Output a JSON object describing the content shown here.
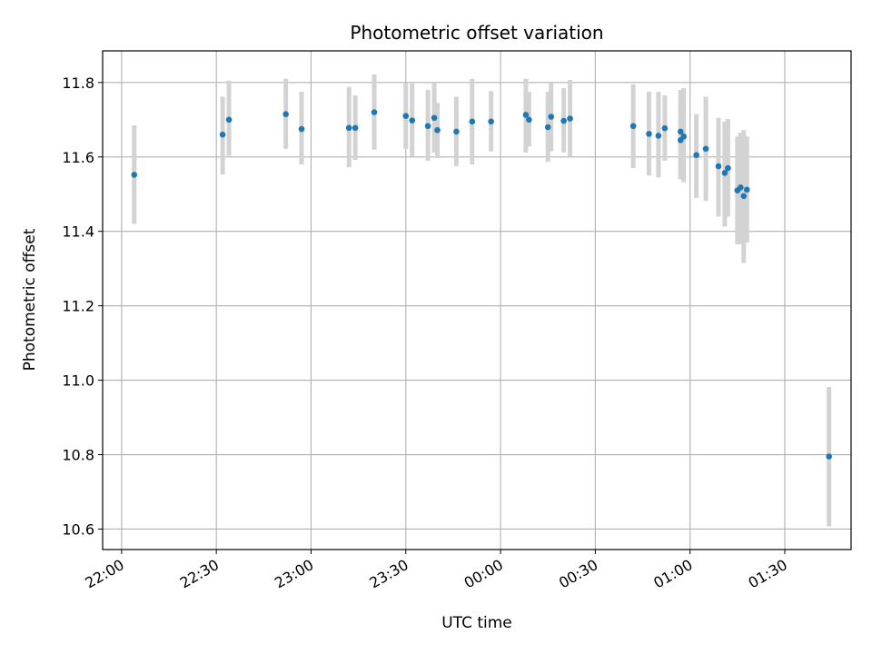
{
  "chart_data": {
    "type": "scatter",
    "title": "Photometric offset variation",
    "xlabel": "UTC time",
    "ylabel": "Photometric offset",
    "x_axis_kind": "time",
    "xlim": [
      "21:54",
      "01:51"
    ],
    "ylim": [
      10.545,
      11.885
    ],
    "xticks": [
      "22:00",
      "22:30",
      "23:00",
      "23:30",
      "00:00",
      "00:30",
      "01:00",
      "01:30"
    ],
    "yticks": [
      10.6,
      10.8,
      11.0,
      11.2,
      11.4,
      11.6,
      11.8
    ],
    "ytick_labels": [
      "10.6",
      "10.8",
      "11.0",
      "11.2",
      "11.4",
      "11.6",
      "11.8"
    ],
    "grid": true,
    "marker_color": "#1f77b4",
    "errorbar_color": "#d3d3d3",
    "series": [
      {
        "points": [
          {
            "x": "22:04",
            "y": 11.552,
            "lo": 11.42,
            "hi": 11.685
          },
          {
            "x": "22:32",
            "y": 11.66,
            "lo": 11.553,
            "hi": 11.762
          },
          {
            "x": "22:34",
            "y": 11.7,
            "lo": 11.603,
            "hi": 11.805
          },
          {
            "x": "22:52",
            "y": 11.715,
            "lo": 11.622,
            "hi": 11.81
          },
          {
            "x": "22:57",
            "y": 11.675,
            "lo": 11.58,
            "hi": 11.775
          },
          {
            "x": "23:12",
            "y": 11.678,
            "lo": 11.572,
            "hi": 11.788
          },
          {
            "x": "23:14",
            "y": 11.678,
            "lo": 11.592,
            "hi": 11.765
          },
          {
            "x": "23:20",
            "y": 11.72,
            "lo": 11.62,
            "hi": 11.822
          },
          {
            "x": "23:30",
            "y": 11.71,
            "lo": 11.622,
            "hi": 11.797
          },
          {
            "x": "23:32",
            "y": 11.698,
            "lo": 11.602,
            "hi": 11.797
          },
          {
            "x": "23:37",
            "y": 11.683,
            "lo": 11.59,
            "hi": 11.78
          },
          {
            "x": "23:39",
            "y": 11.705,
            "lo": 11.612,
            "hi": 11.8
          },
          {
            "x": "23:40",
            "y": 11.672,
            "lo": 11.597,
            "hi": 11.745
          },
          {
            "x": "23:46",
            "y": 11.668,
            "lo": 11.575,
            "hi": 11.762
          },
          {
            "x": "23:51",
            "y": 11.695,
            "lo": 11.58,
            "hi": 11.81
          },
          {
            "x": "23:57",
            "y": 11.695,
            "lo": 11.615,
            "hi": 11.777
          },
          {
            "x": "00:08",
            "y": 11.713,
            "lo": 11.612,
            "hi": 11.81
          },
          {
            "x": "00:09",
            "y": 11.7,
            "lo": 11.628,
            "hi": 11.775
          },
          {
            "x": "00:15",
            "y": 11.68,
            "lo": 11.587,
            "hi": 11.775
          },
          {
            "x": "00:16",
            "y": 11.708,
            "lo": 11.615,
            "hi": 11.8
          },
          {
            "x": "00:20",
            "y": 11.697,
            "lo": 11.612,
            "hi": 11.785
          },
          {
            "x": "00:22",
            "y": 11.703,
            "lo": 11.602,
            "hi": 11.807
          },
          {
            "x": "00:42",
            "y": 11.683,
            "lo": 11.57,
            "hi": 11.795
          },
          {
            "x": "00:47",
            "y": 11.662,
            "lo": 11.55,
            "hi": 11.775
          },
          {
            "x": "00:50",
            "y": 11.657,
            "lo": 11.545,
            "hi": 11.775
          },
          {
            "x": "00:52",
            "y": 11.677,
            "lo": 11.59,
            "hi": 11.765
          },
          {
            "x": "00:57",
            "y": 11.645,
            "lo": 11.54,
            "hi": 11.762
          },
          {
            "x": "00:57",
            "y": 11.668,
            "lo": 11.545,
            "hi": 11.78
          },
          {
            "x": "00:58",
            "y": 11.655,
            "lo": 11.532,
            "hi": 11.785
          },
          {
            "x": "01:02",
            "y": 11.605,
            "lo": 11.49,
            "hi": 11.715
          },
          {
            "x": "01:05",
            "y": 11.622,
            "lo": 11.482,
            "hi": 11.762
          },
          {
            "x": "01:09",
            "y": 11.575,
            "lo": 11.44,
            "hi": 11.705
          },
          {
            "x": "01:11",
            "y": 11.557,
            "lo": 11.413,
            "hi": 11.695
          },
          {
            "x": "01:12",
            "y": 11.57,
            "lo": 11.44,
            "hi": 11.702
          },
          {
            "x": "01:15",
            "y": 11.51,
            "lo": 11.365,
            "hi": 11.655
          },
          {
            "x": "01:16",
            "y": 11.518,
            "lo": 11.365,
            "hi": 11.665
          },
          {
            "x": "01:17",
            "y": 11.495,
            "lo": 11.315,
            "hi": 11.672
          },
          {
            "x": "01:18",
            "y": 11.512,
            "lo": 11.37,
            "hi": 11.655
          },
          {
            "x": "01:44",
            "y": 10.795,
            "lo": 10.607,
            "hi": 10.982
          }
        ]
      }
    ]
  }
}
